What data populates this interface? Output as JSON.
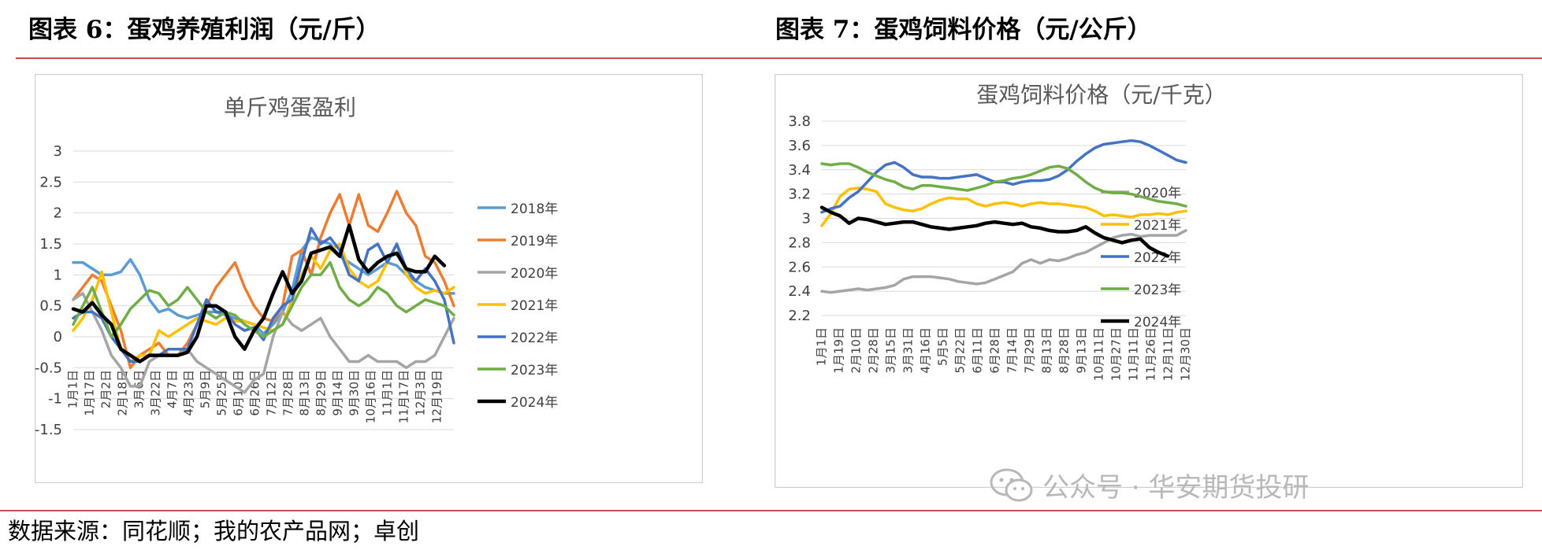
{
  "figure_titles": {
    "left": "图表 6：蛋鸡养殖利润（元/斤）",
    "right": "图表 7：蛋鸡饲料价格（元/公斤）"
  },
  "source_note": "数据来源：同花顺；我的农产品网；卓创",
  "watermark": "公众号 · 华安期货投研",
  "colors": {
    "2018": "#5b9bd5",
    "2019": "#ed7d31",
    "2020": "#a5a5a5",
    "2021": "#ffc000",
    "2022": "#4472c4",
    "2023": "#70ad47",
    "2024": "#000000",
    "rule": "#c0504d",
    "grid": "#d9d9d9",
    "border": "#d0d0d0"
  },
  "chart_data": [
    {
      "type": "line",
      "title": "单斤鸡蛋盈利",
      "ylim": [
        -1.5,
        3
      ],
      "yticks": [
        "3",
        "2.5",
        "2",
        "1.5",
        "1",
        "0.5",
        "0",
        "-0.5",
        "-1",
        "-1.5"
      ],
      "ytick_values": [
        3,
        2.5,
        2,
        1.5,
        1,
        0.5,
        0,
        -0.5,
        -1,
        -1.5
      ],
      "x_tick_labels": [
        "1月1日",
        "1月17日",
        "2月2日",
        "2月18日",
        "3月6日",
        "3月22日",
        "4月7日",
        "4月23日",
        "5月9日",
        "5月25日",
        "6月10日",
        "6月26日",
        "7月12日",
        "7月28日",
        "8月13日",
        "8月29日",
        "9月14日",
        "9月30日",
        "10月16日",
        "11月1日",
        "11月17日",
        "12月3日",
        "12月19日"
      ],
      "x_tick_positions": [
        0,
        0.0435,
        0.087,
        0.1304,
        0.1739,
        0.2174,
        0.2609,
        0.3043,
        0.3478,
        0.3913,
        0.4348,
        0.4783,
        0.5217,
        0.5652,
        0.6087,
        0.6522,
        0.6957,
        0.7391,
        0.7826,
        0.8261,
        0.8696,
        0.913,
        0.9565
      ],
      "grid": true,
      "legend_position": "right",
      "x": [
        0,
        0.025,
        0.05,
        0.075,
        0.1,
        0.125,
        0.15,
        0.175,
        0.2,
        0.225,
        0.25,
        0.275,
        0.3,
        0.325,
        0.35,
        0.375,
        0.4,
        0.425,
        0.45,
        0.475,
        0.5,
        0.525,
        0.55,
        0.575,
        0.6,
        0.625,
        0.65,
        0.675,
        0.7,
        0.725,
        0.75,
        0.775,
        0.8,
        0.825,
        0.85,
        0.875,
        0.9,
        0.925,
        0.95,
        0.975,
        1
      ],
      "series": [
        {
          "name": "2018年",
          "color_key": "2018",
          "values": [
            1.2,
            1.2,
            1.1,
            1.0,
            1.0,
            1.05,
            1.25,
            1.0,
            0.6,
            0.4,
            0.45,
            0.35,
            0.3,
            0.35,
            0.4,
            0.4,
            0.35,
            0.3,
            0.25,
            0.2,
            0.05,
            0.2,
            0.4,
            0.75,
            1.4,
            1.6,
            1.55,
            1.5,
            1.3,
            1.2,
            1.1,
            1.0,
            1.1,
            1.2,
            1.15,
            1.0,
            0.9,
            0.8,
            0.75,
            0.7,
            0.7
          ]
        },
        {
          "name": "2019年",
          "color_key": "2019",
          "values": [
            0.6,
            0.8,
            1.0,
            0.9,
            0.5,
            0.1,
            -0.5,
            -0.3,
            -0.2,
            -0.1,
            -0.3,
            -0.3,
            -0.1,
            0.2,
            0.5,
            0.8,
            1.0,
            1.2,
            0.8,
            0.5,
            0.3,
            0.25,
            0.5,
            1.3,
            1.4,
            1.0,
            1.6,
            2.0,
            2.3,
            1.8,
            2.3,
            1.8,
            1.7,
            2.0,
            2.35,
            2.0,
            1.8,
            1.3,
            1.2,
            0.9,
            0.5
          ]
        },
        {
          "name": "2020年",
          "color_key": "2020",
          "values": [
            0.6,
            0.7,
            0.4,
            0.1,
            -0.3,
            -0.5,
            -0.8,
            -0.8,
            -0.4,
            -0.3,
            -0.3,
            -0.3,
            -0.2,
            -0.4,
            -0.5,
            -0.6,
            -0.7,
            -0.8,
            -0.9,
            -0.7,
            -0.6,
            0.0,
            0.4,
            0.2,
            0.1,
            0.2,
            0.3,
            0.0,
            -0.2,
            -0.4,
            -0.4,
            -0.3,
            -0.4,
            -0.4,
            -0.4,
            -0.5,
            -0.4,
            -0.4,
            -0.3,
            0.0,
            0.3
          ]
        },
        {
          "name": "2021年",
          "color_key": "2021",
          "values": [
            0.1,
            0.3,
            0.6,
            1.05,
            0.4,
            -0.2,
            -0.4,
            -0.3,
            -0.3,
            0.1,
            0.0,
            0.1,
            0.2,
            0.3,
            0.25,
            0.2,
            0.3,
            0.25,
            0.25,
            0.2,
            0.15,
            0.1,
            0.2,
            0.6,
            1.0,
            1.3,
            1.1,
            1.4,
            1.5,
            1.1,
            0.9,
            0.8,
            0.9,
            1.2,
            1.5,
            1.0,
            0.8,
            0.7,
            0.75,
            0.7,
            0.8
          ]
        },
        {
          "name": "2022年",
          "color_key": "2022",
          "values": [
            0.3,
            0.4,
            0.4,
            0.3,
            0.0,
            -0.2,
            -0.4,
            -0.4,
            -0.3,
            -0.3,
            -0.2,
            -0.2,
            -0.2,
            0.2,
            0.6,
            0.4,
            0.4,
            0.2,
            0.1,
            0.15,
            -0.05,
            0.3,
            0.5,
            0.6,
            1.2,
            1.75,
            1.5,
            1.6,
            1.4,
            1.0,
            0.9,
            1.4,
            1.5,
            1.2,
            1.5,
            1.1,
            0.9,
            1.1,
            0.9,
            0.6,
            -0.1
          ]
        },
        {
          "name": "2023年",
          "color_key": "2023",
          "values": [
            0.2,
            0.5,
            0.8,
            0.4,
            0.0,
            0.2,
            0.45,
            0.6,
            0.75,
            0.7,
            0.5,
            0.6,
            0.8,
            0.6,
            0.4,
            0.3,
            0.4,
            0.35,
            0.2,
            0.1,
            0.0,
            0.1,
            0.2,
            0.5,
            0.8,
            1.0,
            1.0,
            1.2,
            0.8,
            0.6,
            0.5,
            0.6,
            0.8,
            0.7,
            0.5,
            0.4,
            0.5,
            0.6,
            0.55,
            0.5,
            0.35
          ]
        },
        {
          "name": "2024年",
          "color_key": "2024",
          "values": [
            0.45,
            0.4,
            0.55,
            0.35,
            0.2,
            -0.2,
            -0.3,
            -0.4,
            -0.3,
            -0.3,
            -0.3,
            -0.3,
            -0.25,
            0.0,
            0.5,
            0.5,
            0.4,
            0.0,
            -0.2,
            0.1,
            0.3,
            0.7,
            1.05,
            0.7,
            0.9,
            1.35,
            1.4,
            1.45,
            1.3,
            1.8,
            1.25,
            1.05,
            1.2,
            1.3,
            1.35,
            1.1,
            1.05,
            1.05,
            1.3,
            1.15,
            null
          ]
        }
      ]
    },
    {
      "type": "line",
      "title": "蛋鸡饲料价格（元/千克）",
      "ylim": [
        2.2,
        3.8
      ],
      "yticks": [
        "3.8",
        "3.6",
        "3.4",
        "3.2",
        "3",
        "2.8",
        "2.6",
        "2.4",
        "2.2"
      ],
      "ytick_values": [
        3.8,
        3.6,
        3.4,
        3.2,
        3.0,
        2.8,
        2.6,
        2.4,
        2.2
      ],
      "x_tick_labels": [
        "1月1日",
        "1月19日",
        "2月10日",
        "2月28日",
        "3月15日",
        "3月31日",
        "4月16日",
        "5月5日",
        "5月22日",
        "6月11日",
        "6月28日",
        "7月14日",
        "7月29日",
        "8月13日",
        "8月28日",
        "9月13日",
        "10月11日",
        "10月27日",
        "11月11日",
        "11月26日",
        "12月11日",
        "12月30日"
      ],
      "x_tick_positions": [
        0,
        0.0476,
        0.0952,
        0.1429,
        0.1905,
        0.2381,
        0.2857,
        0.3333,
        0.381,
        0.4286,
        0.4762,
        0.5238,
        0.5714,
        0.619,
        0.6667,
        0.7143,
        0.7619,
        0.8095,
        0.8571,
        0.9048,
        0.9524,
        1
      ],
      "grid": true,
      "legend_position": "right",
      "x": [
        0,
        0.025,
        0.05,
        0.075,
        0.1,
        0.125,
        0.15,
        0.175,
        0.2,
        0.225,
        0.25,
        0.275,
        0.3,
        0.325,
        0.35,
        0.375,
        0.4,
        0.425,
        0.45,
        0.475,
        0.5,
        0.525,
        0.55,
        0.575,
        0.6,
        0.625,
        0.65,
        0.675,
        0.7,
        0.725,
        0.75,
        0.775,
        0.8,
        0.825,
        0.85,
        0.875,
        0.9,
        0.925,
        0.95,
        0.975,
        1
      ],
      "series": [
        {
          "name": "2020年",
          "color_key": "2020",
          "values": [
            2.4,
            2.39,
            2.4,
            2.41,
            2.42,
            2.41,
            2.42,
            2.43,
            2.45,
            2.5,
            2.52,
            2.52,
            2.52,
            2.51,
            2.5,
            2.48,
            2.47,
            2.46,
            2.47,
            2.5,
            2.53,
            2.56,
            2.63,
            2.66,
            2.63,
            2.66,
            2.65,
            2.67,
            2.7,
            2.72,
            2.76,
            2.8,
            2.84,
            2.86,
            2.87,
            2.85,
            2.86,
            2.86,
            2.86,
            2.86,
            2.9
          ]
        },
        {
          "name": "2021年",
          "color_key": "2021",
          "values": [
            2.94,
            3.04,
            3.18,
            3.24,
            3.25,
            3.24,
            3.22,
            3.12,
            3.09,
            3.07,
            3.06,
            3.08,
            3.12,
            3.15,
            3.17,
            3.16,
            3.16,
            3.12,
            3.1,
            3.12,
            3.13,
            3.12,
            3.1,
            3.12,
            3.13,
            3.12,
            3.12,
            3.11,
            3.1,
            3.09,
            3.06,
            3.02,
            3.03,
            3.02,
            3.01,
            3.03,
            3.03,
            3.04,
            3.03,
            3.05,
            3.06
          ]
        },
        {
          "name": "2022年",
          "color_key": "2022",
          "values": [
            3.05,
            3.08,
            3.1,
            3.17,
            3.22,
            3.3,
            3.38,
            3.44,
            3.46,
            3.42,
            3.36,
            3.34,
            3.34,
            3.33,
            3.33,
            3.34,
            3.35,
            3.36,
            3.33,
            3.3,
            3.3,
            3.28,
            3.3,
            3.31,
            3.31,
            3.32,
            3.35,
            3.4,
            3.47,
            3.53,
            3.58,
            3.61,
            3.62,
            3.63,
            3.64,
            3.63,
            3.6,
            3.56,
            3.52,
            3.48,
            3.46
          ]
        },
        {
          "name": "2023年",
          "color_key": "2023",
          "values": [
            3.45,
            3.44,
            3.45,
            3.45,
            3.42,
            3.38,
            3.35,
            3.32,
            3.3,
            3.26,
            3.24,
            3.27,
            3.27,
            3.26,
            3.25,
            3.24,
            3.23,
            3.25,
            3.27,
            3.3,
            3.31,
            3.33,
            3.34,
            3.36,
            3.39,
            3.42,
            3.43,
            3.41,
            3.36,
            3.3,
            3.25,
            3.22,
            3.21,
            3.21,
            3.2,
            3.18,
            3.16,
            3.14,
            3.13,
            3.12,
            3.1
          ]
        },
        {
          "name": "2024年",
          "color_key": "2024",
          "values": [
            3.09,
            3.05,
            3.02,
            2.96,
            3.0,
            2.99,
            2.97,
            2.95,
            2.96,
            2.97,
            2.97,
            2.95,
            2.93,
            2.92,
            2.91,
            2.92,
            2.93,
            2.94,
            2.96,
            2.97,
            2.96,
            2.95,
            2.96,
            2.93,
            2.92,
            2.9,
            2.89,
            2.89,
            2.9,
            2.93,
            2.88,
            2.84,
            2.82,
            2.8,
            2.82,
            2.83,
            2.76,
            2.72,
            2.69,
            null,
            null
          ]
        }
      ]
    }
  ]
}
